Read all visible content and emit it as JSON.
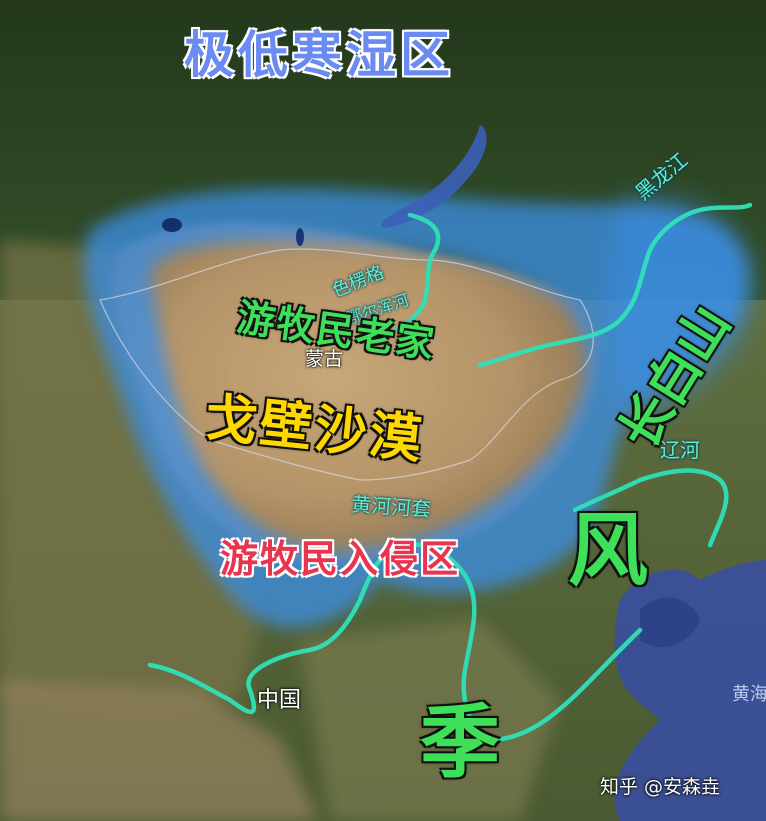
{
  "labels": {
    "top_title": "极低寒湿区",
    "nomad_home": "游牧民老家",
    "gobi": "戈壁沙漠",
    "invasion": "游牧民入侵区",
    "feng": "风",
    "changbai": "长白山",
    "xiu": "季",
    "yellow_bend": "黄河河套",
    "liao": "辽河",
    "heilong": "黑龙江",
    "selenge": "色楞格",
    "orkhon": "鄂尔浑河",
    "mongolia": "蒙古",
    "china": "中国",
    "yellow_sea": "黄海",
    "watermark": "知乎 @安森垚"
  },
  "colors": {
    "title_blue": "#6a8cf2",
    "green_label": "#3ee05a",
    "gobi_yellow": "#ffd800",
    "invasion_red": "#e8344e",
    "river": "#2fe0b8",
    "river_text": "#5ff0c8",
    "cold_zone": "#3a8fe8"
  },
  "icons": {
    "map_base": "satellite-terrain",
    "river_lines": "river-path"
  }
}
